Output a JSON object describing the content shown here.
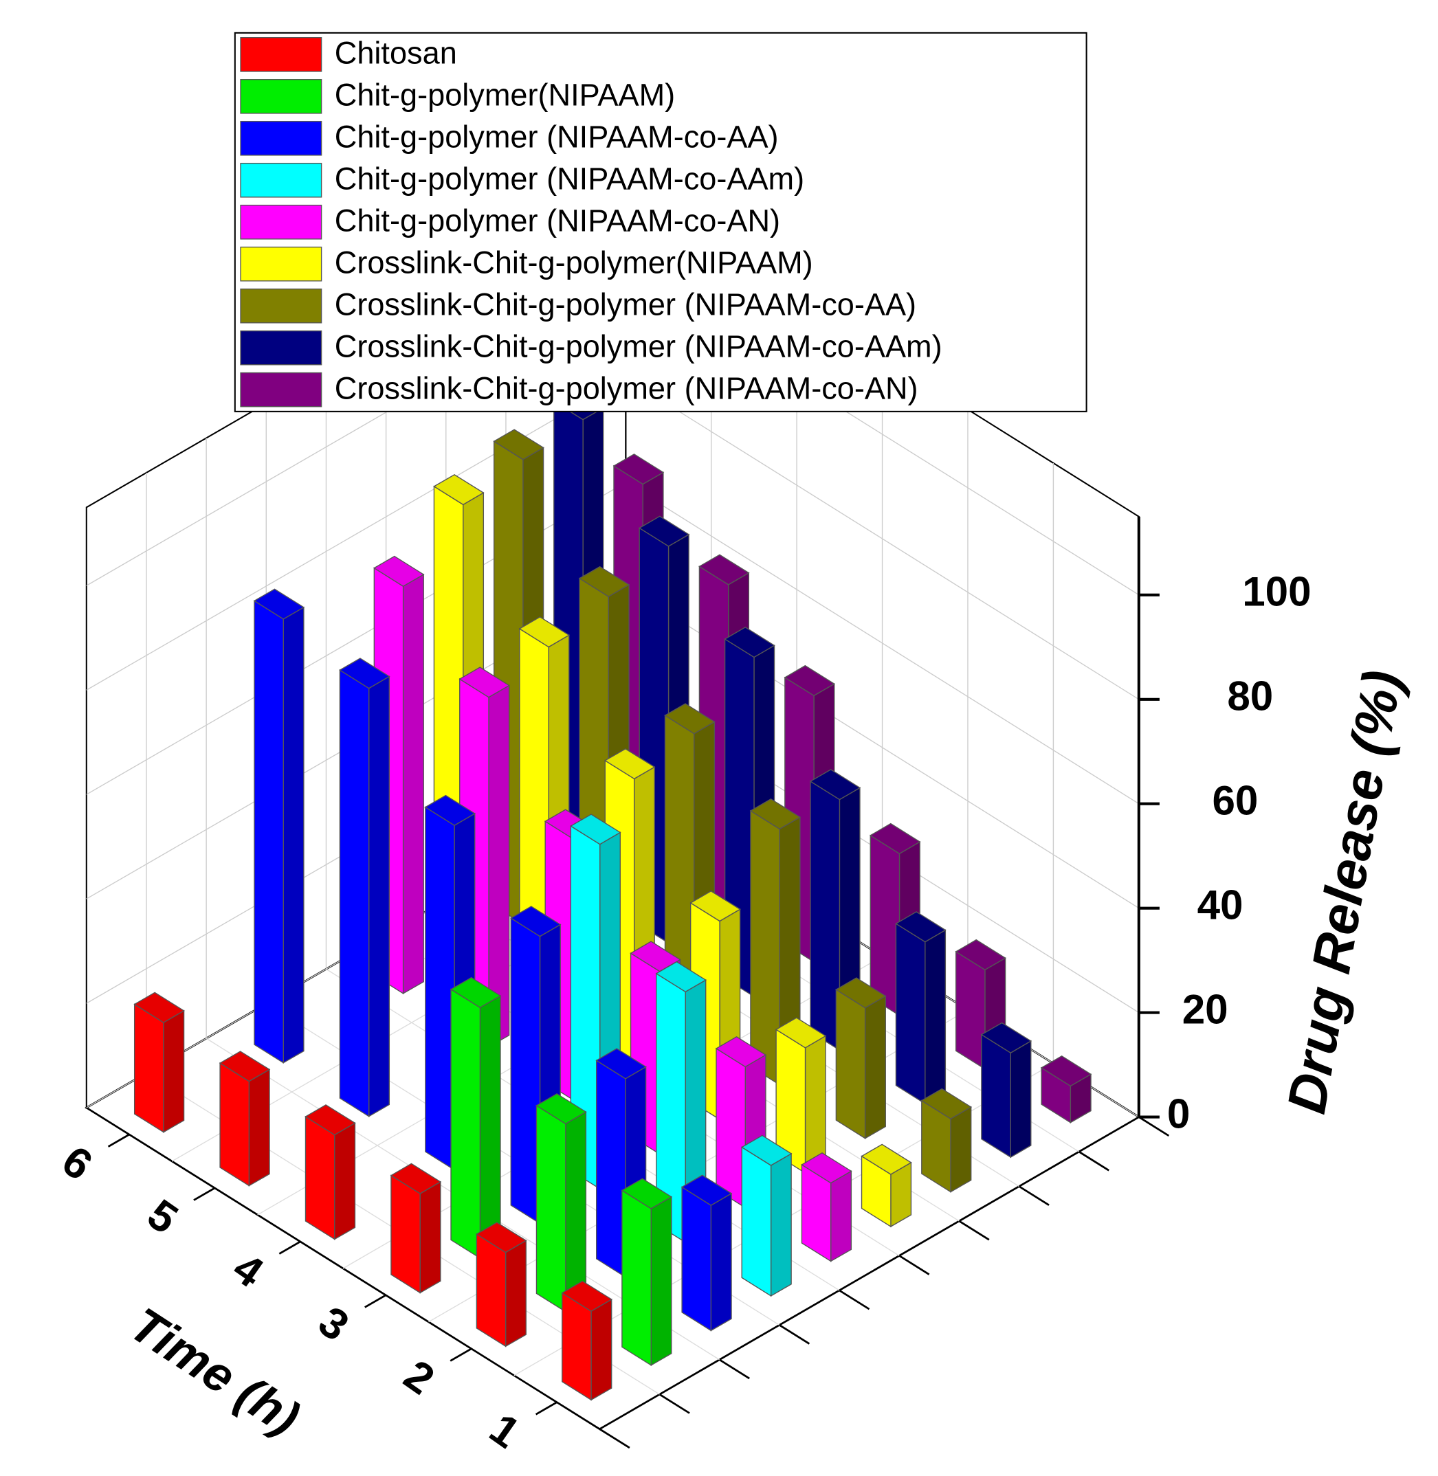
{
  "chart_data": {
    "type": "bar3d",
    "xlabel": "Time (h)",
    "ylabel": "Drug Release (%)",
    "categories": [
      1,
      2,
      3,
      4,
      5,
      6
    ],
    "series": [
      {
        "name": "Chitosan",
        "color": "#ff0000",
        "values": [
          17,
          18,
          19,
          20,
          20,
          21
        ]
      },
      {
        "name": "Chit-g-polymer(NIPAAM)",
        "color": "#00ee00",
        "values": [
          30,
          36,
          48,
          null,
          null,
          null
        ]
      },
      {
        "name": "Chit-g-polymer (NIPAAM-co-AA)",
        "color": "#0000ff",
        "values": [
          24,
          38,
          55,
          66,
          82,
          85
        ]
      },
      {
        "name": "Chit-g-polymer (NIPAAM-co-AAm)",
        "color": "#00ffff",
        "values": [
          25,
          48,
          66,
          null,
          null,
          null
        ]
      },
      {
        "name": "Chit-g-polymer (NIPAAM-co-AN)",
        "color": "#ff00ff",
        "values": [
          15,
          27,
          35,
          50,
          67,
          78
        ]
      },
      {
        "name": "Crosslink-Chit-g-polymer(NIPAAM)",
        "color": "#ffff00",
        "values": [
          10,
          24,
          38,
          55,
          70,
          87
        ]
      },
      {
        "name": "Crosslink-Chit-g-polymer (NIPAAM-co-AA)",
        "color": "#808000",
        "values": [
          14,
          25,
          49,
          57,
          73,
          89
        ]
      },
      {
        "name": "Crosslink-Chit-g-polymer (NIPAAM-co-AAm)",
        "color": "#000080",
        "values": [
          20,
          31,
          48,
          65,
          76,
          90
        ]
      },
      {
        "name": "Crosslink-Chit-g-polymer (NIPAAM-co-AN)",
        "color": "#800080",
        "values": [
          7,
          19,
          31,
          51,
          62,
          71
        ]
      }
    ],
    "ylim": [
      0,
      115
    ],
    "yticks": [
      0,
      20,
      40,
      60,
      80,
      100
    ],
    "grid": true
  }
}
